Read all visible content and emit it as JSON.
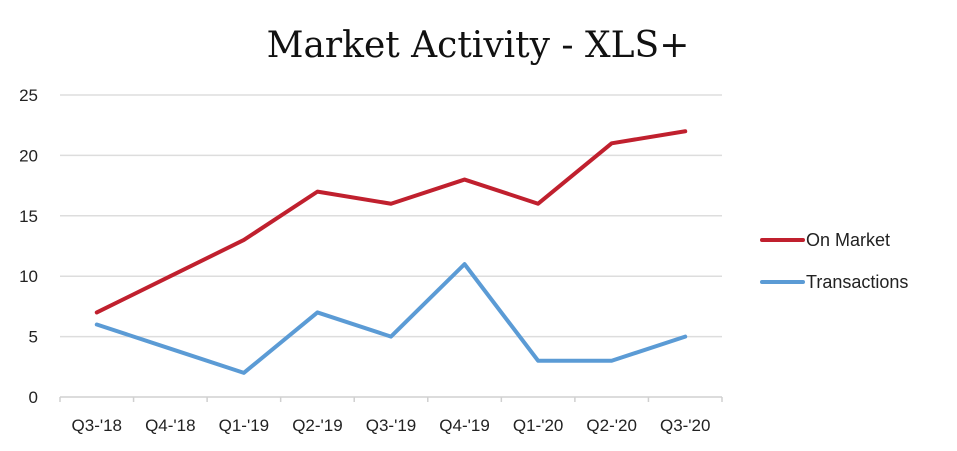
{
  "chart_data": {
    "type": "line",
    "title": "Market Activity - XLS+",
    "xlabel": "",
    "ylabel": "",
    "categories": [
      "Q3-'18",
      "Q4-'18",
      "Q1-'19",
      "Q2-'19",
      "Q3-'19",
      "Q4-'19",
      "Q1-'20",
      "Q2-'20",
      "Q3-'20"
    ],
    "y_ticks": [
      "0",
      "5",
      "10",
      "15",
      "20",
      "25"
    ],
    "ylim": [
      0,
      25
    ],
    "grid": "horizontal",
    "legend_position": "right",
    "series": [
      {
        "name": "On Market",
        "color": "#C0202E",
        "values": [
          7,
          10,
          13,
          17,
          16,
          18,
          16,
          21,
          22
        ]
      },
      {
        "name": "Transactions",
        "color": "#5B9BD5",
        "values": [
          6,
          4,
          2,
          7,
          5,
          11,
          3,
          3,
          5
        ]
      }
    ]
  }
}
